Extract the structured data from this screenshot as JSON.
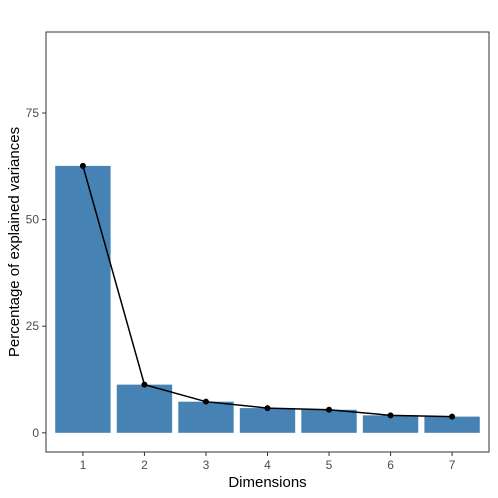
{
  "chart_data": {
    "type": "bar",
    "title": "",
    "xlabel": "Dimensions",
    "ylabel": "Percentage of explained variances",
    "categories": [
      "1",
      "2",
      "3",
      "4",
      "5",
      "6",
      "7"
    ],
    "values": [
      62.6,
      11.3,
      7.3,
      5.8,
      5.4,
      4.1,
      3.8
    ],
    "overlay": "line-with-points",
    "ylim": [
      -4.5,
      94
    ],
    "yticks": [
      0,
      25,
      50,
      75
    ],
    "grid": false,
    "legend": "none",
    "bar_color": "#4682B4",
    "line_color": "#000000"
  }
}
